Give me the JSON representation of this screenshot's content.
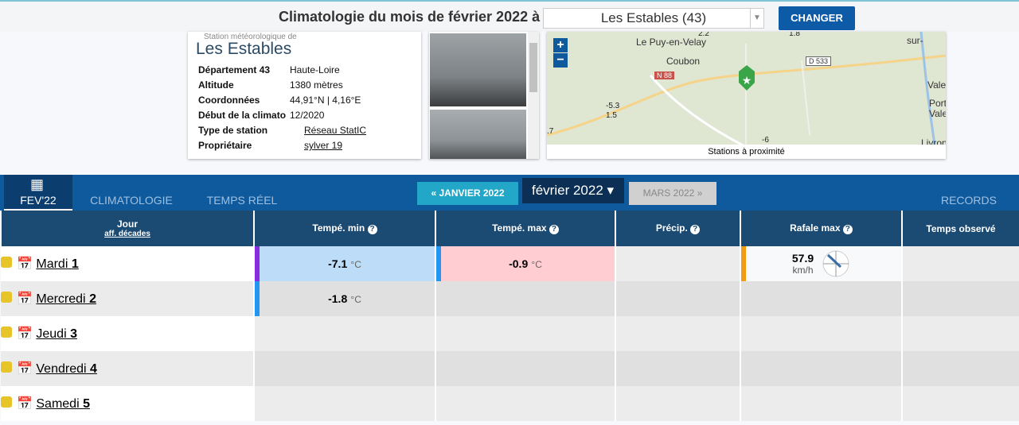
{
  "header": {
    "title": "Climatologie du mois de février 2022 à",
    "station_select": "Les Estables (43)",
    "button": "CHANGER"
  },
  "station": {
    "caption": "Station météorologique de",
    "name": "Les Estables",
    "fields": [
      [
        "Département 43",
        "Haute-Loire"
      ],
      [
        "Altitude",
        "1380 mètres"
      ],
      [
        "Coordonnées",
        "44,91°N | 4,16°E"
      ],
      [
        "Début de la climato",
        "12/2020"
      ],
      [
        "Type de station",
        "Réseau StatIC"
      ],
      [
        "Propriétaire",
        "sylver 19"
      ]
    ]
  },
  "map": {
    "zoom_in": "+",
    "zoom_out": "−",
    "caption": "Stations à proximité",
    "places": [
      "Le Puy-en-Velay",
      "Coubon",
      "N 88",
      "D 533",
      "Vale",
      "Portes",
      "Valer",
      "Livron-su",
      "sur-"
    ],
    "readings": [
      "-5.3",
      "1.5",
      "2.2",
      "1.8",
      "-6",
      ".7"
    ]
  },
  "nav": {
    "tabs": [
      "FEV'22",
      "CLIMATOLOGIE",
      "TEMPS RÉEL"
    ],
    "prev": "« JANVIER 2022",
    "current": "février 2022",
    "next": "MARS 2022 »",
    "records": "RECORDS"
  },
  "table": {
    "headers": [
      "Jour",
      "Tempé. min",
      "Tempé. max",
      "Précip.",
      "Rafale max",
      "Temps observé"
    ],
    "subheader": "aff. décades",
    "unit_temp": "°C",
    "unit_wind": "km/h",
    "rows": [
      {
        "day": "Mardi",
        "num": "1",
        "min": -7.1,
        "max": -0.9,
        "gust": 57.9
      },
      {
        "day": "Mercredi",
        "num": "2",
        "min": -1.8
      },
      {
        "day": "Jeudi",
        "num": "3"
      },
      {
        "day": "Vendredi",
        "num": "4"
      },
      {
        "day": "Samedi",
        "num": "5"
      }
    ]
  }
}
